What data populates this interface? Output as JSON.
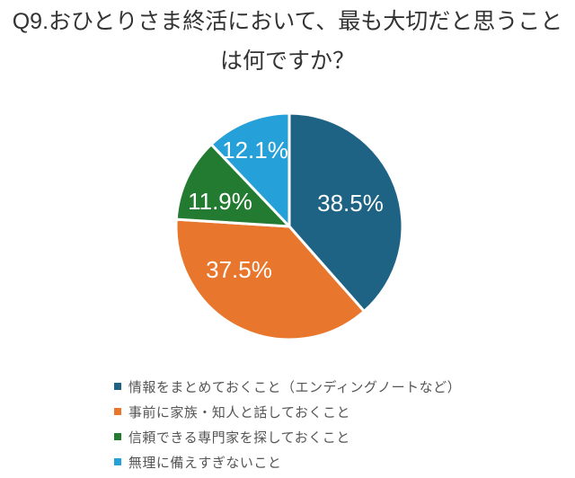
{
  "title": {
    "line1": "Q9.おひとりさま終活において、最も大切だと思うこと",
    "line2": "は何ですか？"
  },
  "chart_data": {
    "type": "pie",
    "title": "Q9.おひとりさま終活において、最も大切だと思うことは何ですか？",
    "labels": [
      "情報をまとめておくこと（エンディングノートなど）",
      "事前に家族・知人と話しておくこと",
      "信頼できる専門家を探しておくこと",
      "無理に備えすぎないこと"
    ],
    "values": [
      38.5,
      37.5,
      11.9,
      12.1
    ],
    "value_labels": [
      "38.5%",
      "37.5%",
      "11.9%",
      "12.1%"
    ],
    "colors": [
      "#1f6384",
      "#e8762c",
      "#237b31",
      "#25a0d8"
    ],
    "start_angle_deg": 0,
    "direction": "clockwise",
    "legend_position": "bottom",
    "slice_gap_color": "#ffffff"
  }
}
